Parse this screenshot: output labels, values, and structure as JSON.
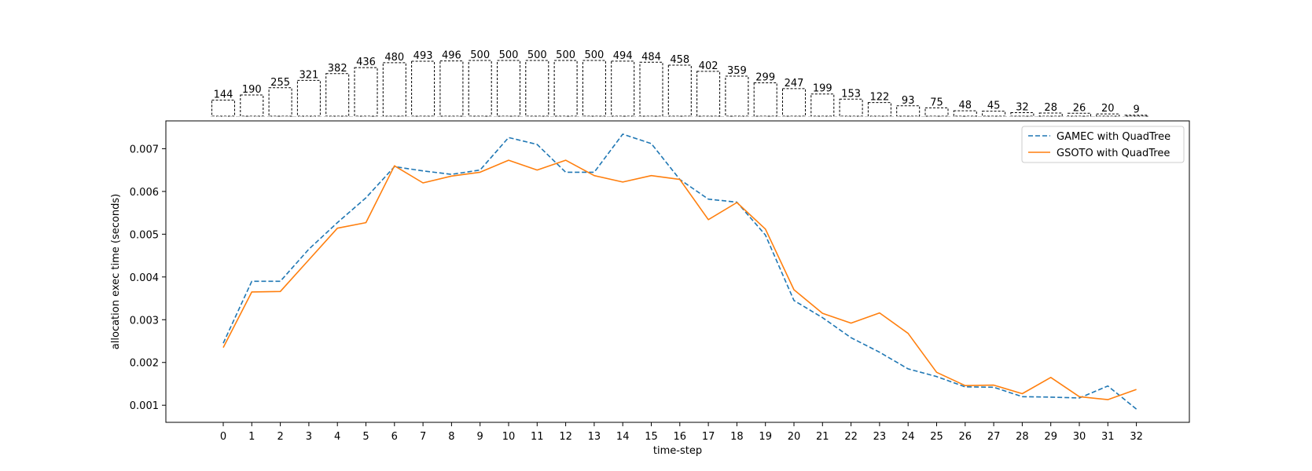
{
  "chart_data": {
    "type": "line",
    "xlabel": "time-step",
    "ylabel": "allocation exec time (seconds)",
    "x": [
      0,
      1,
      2,
      3,
      4,
      5,
      6,
      7,
      8,
      9,
      10,
      11,
      12,
      13,
      14,
      15,
      16,
      17,
      18,
      19,
      20,
      21,
      22,
      23,
      24,
      25,
      26,
      27,
      28,
      29,
      30,
      31,
      32
    ],
    "ylim": [
      0.0006,
      0.00765
    ],
    "yticks": [
      0.001,
      0.002,
      0.003,
      0.004,
      0.005,
      0.006,
      0.007
    ],
    "legend_position": "top-right",
    "series": [
      {
        "name": "GAMEC with QuadTree",
        "color": "#1f77b4",
        "style": "dashed",
        "values": [
          0.00245,
          0.0039,
          0.0039,
          0.00465,
          0.00527,
          0.00585,
          0.00658,
          0.00648,
          0.0064,
          0.0065,
          0.00726,
          0.0071,
          0.00645,
          0.00645,
          0.00734,
          0.00712,
          0.00628,
          0.00582,
          0.00575,
          0.00498,
          0.00345,
          0.00305,
          0.00258,
          0.00224,
          0.00185,
          0.00167,
          0.00143,
          0.00142,
          0.0012,
          0.00119,
          0.00117,
          0.00145,
          0.00091
        ]
      },
      {
        "name": "GSOTO with QuadTree",
        "color": "#ff7f0e",
        "style": "solid",
        "values": [
          0.00235,
          0.00365,
          0.00366,
          0.0044,
          0.00514,
          0.00527,
          0.0066,
          0.0062,
          0.00636,
          0.00645,
          0.00673,
          0.0065,
          0.00673,
          0.00637,
          0.00622,
          0.00637,
          0.00628,
          0.00534,
          0.00574,
          0.00512,
          0.0037,
          0.00315,
          0.00292,
          0.00316,
          0.00268,
          0.00177,
          0.00146,
          0.00147,
          0.00127,
          0.00165,
          0.0012,
          0.00113,
          0.00137
        ]
      }
    ],
    "counts": {
      "values": [
        144,
        190,
        255,
        321,
        382,
        436,
        480,
        493,
        496,
        500,
        500,
        500,
        500,
        500,
        494,
        484,
        458,
        402,
        359,
        299,
        247,
        199,
        153,
        122,
        93,
        75,
        48,
        45,
        32,
        28,
        26,
        20,
        9
      ],
      "max": 500
    }
  }
}
